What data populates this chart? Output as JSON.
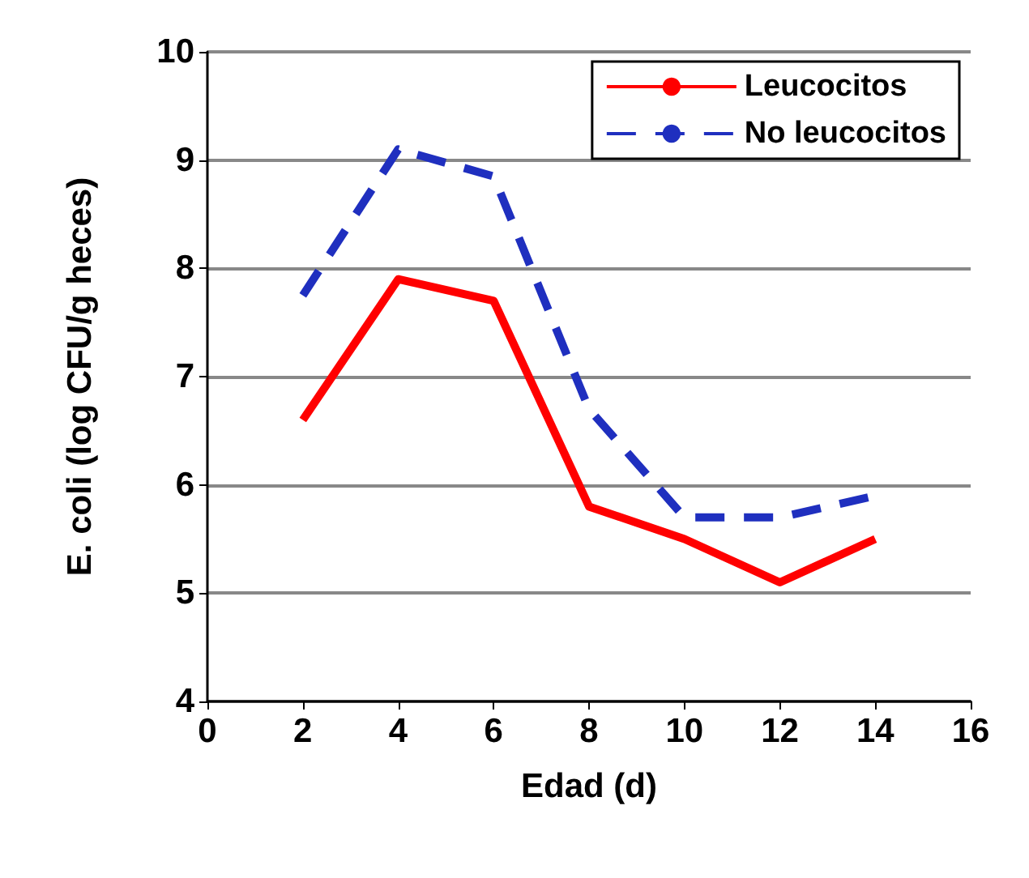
{
  "chart_data": {
    "type": "line",
    "xlabel": "Edad (d)",
    "ylabel": "E. coli (log CFU/g heces)",
    "x": [
      2,
      4,
      6,
      8,
      10,
      12,
      14
    ],
    "series": [
      {
        "name": "Leucocitos",
        "color": "#ff0000",
        "line_style": "solid",
        "values": [
          6.6,
          7.9,
          7.7,
          5.8,
          5.5,
          5.1,
          5.5
        ]
      },
      {
        "name": "No leucocitos",
        "color": "#1f2fbf",
        "line_style": "dashed",
        "values": [
          7.75,
          9.1,
          8.85,
          6.7,
          5.7,
          5.7,
          5.9
        ]
      }
    ],
    "xlim": [
      0,
      16
    ],
    "xticks": [
      0,
      2,
      4,
      6,
      8,
      10,
      12,
      14,
      16
    ],
    "ylim": [
      4,
      10
    ],
    "yticks": [
      4,
      5,
      6,
      7,
      8,
      9,
      10
    ],
    "grid": "y",
    "legend": "top right",
    "marker": "none"
  }
}
